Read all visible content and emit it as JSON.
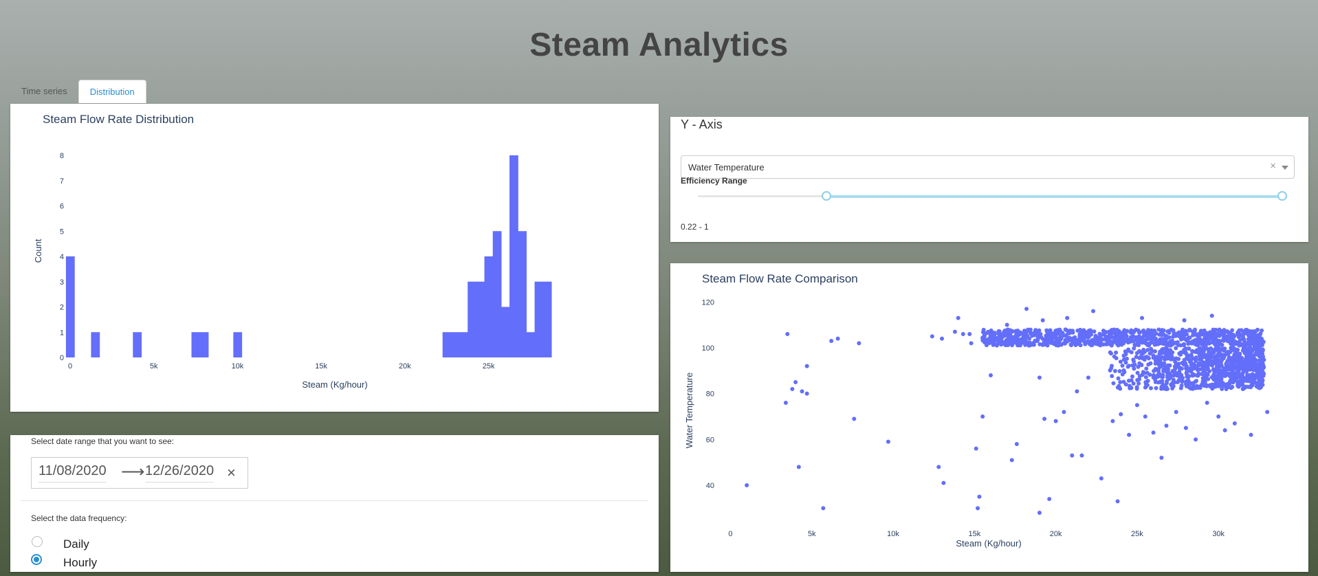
{
  "app": {
    "title": "Steam Analytics"
  },
  "tabs": [
    {
      "label": "Time series",
      "active": false
    },
    {
      "label": "Distribution",
      "active": true
    }
  ],
  "colors": {
    "bar": "#636efa",
    "accent": "#2a8ed0",
    "slider": "#a8dcf0"
  },
  "histogram": {
    "title": "Steam Flow Rate Distribution",
    "xlabel": "Steam (Kg/hour)",
    "ylabel": "Count",
    "x_ticks": [
      "0",
      "5k",
      "10k",
      "15k",
      "20k",
      "25k"
    ],
    "y_ticks": [
      "0",
      "1",
      "2",
      "3",
      "4",
      "5",
      "6",
      "7",
      "8"
    ]
  },
  "controls": {
    "y_axis_label": "Y - Axis",
    "y_axis_value": "Water Temperature",
    "efficiency_label": "Efficiency Range",
    "efficiency_min": 0.22,
    "efficiency_max": 1,
    "efficiency_text": "0.22 - 1"
  },
  "scatter": {
    "title": "Steam Flow Rate Comparison",
    "xlabel": "Steam (Kg/hour)",
    "ylabel": "Water Temperature",
    "x_ticks": [
      "0",
      "5k",
      "10k",
      "15k",
      "20k",
      "25k",
      "30k"
    ],
    "y_ticks": [
      "40",
      "60",
      "80",
      "100",
      "120"
    ]
  },
  "date_range": {
    "label": "Select date range that you want to see:",
    "start": "11/08/2020",
    "end": "12/26/2020"
  },
  "frequency": {
    "label": "Select the data frequency:",
    "options": [
      {
        "label": "Daily",
        "checked": false
      },
      {
        "label": "Hourly",
        "checked": true
      }
    ]
  },
  "chart_data": [
    {
      "type": "bar",
      "title": "Steam Flow Rate Distribution",
      "xlabel": "Steam (Kg/hour)",
      "ylabel": "Count",
      "xlim": [
        0,
        29000
      ],
      "ylim": [
        0,
        8
      ],
      "bin_width": 500,
      "bins": [
        {
          "x0": -250,
          "count": 4
        },
        {
          "x0": 1250,
          "count": 1
        },
        {
          "x0": 3750,
          "count": 1
        },
        {
          "x0": 7250,
          "count": 1
        },
        {
          "x0": 7750,
          "count": 1
        },
        {
          "x0": 9750,
          "count": 1
        },
        {
          "x0": 22250,
          "count": 1
        },
        {
          "x0": 22750,
          "count": 1
        },
        {
          "x0": 23250,
          "count": 1
        },
        {
          "x0": 23750,
          "count": 3
        },
        {
          "x0": 24250,
          "count": 3
        },
        {
          "x0": 24750,
          "count": 4
        },
        {
          "x0": 25250,
          "count": 5
        },
        {
          "x0": 25750,
          "count": 2
        },
        {
          "x0": 26250,
          "count": 8
        },
        {
          "x0": 26750,
          "count": 5
        },
        {
          "x0": 27250,
          "count": 1
        },
        {
          "x0": 27750,
          "count": 3
        },
        {
          "x0": 28250,
          "count": 3
        }
      ]
    },
    {
      "type": "scatter",
      "title": "Steam Flow Rate Comparison",
      "xlabel": "Steam (Kg/hour)",
      "ylabel": "Water Temperature",
      "xlim": [
        -1500,
        33500
      ],
      "ylim": [
        22,
        124
      ],
      "points": [
        [
          1000,
          40
        ],
        [
          3400,
          76
        ],
        [
          3500,
          106
        ],
        [
          3800,
          82
        ],
        [
          4000,
          85
        ],
        [
          4200,
          48
        ],
        [
          4400,
          81
        ],
        [
          4700,
          92
        ],
        [
          4700,
          80
        ],
        [
          5700,
          30
        ],
        [
          6200,
          103
        ],
        [
          6600,
          104
        ],
        [
          7600,
          69
        ],
        [
          7900,
          102
        ],
        [
          9700,
          59
        ],
        [
          12400,
          105
        ],
        [
          12800,
          48
        ],
        [
          13000,
          104
        ],
        [
          13100,
          41
        ],
        [
          13800,
          107
        ],
        [
          14000,
          113
        ],
        [
          14300,
          106
        ],
        [
          14700,
          106
        ],
        [
          14800,
          102
        ],
        [
          15100,
          56
        ],
        [
          15200,
          30
        ],
        [
          15300,
          35
        ],
        [
          15500,
          70
        ],
        [
          16000,
          88
        ],
        [
          17300,
          51
        ],
        [
          17600,
          58
        ],
        [
          18200,
          117
        ],
        [
          19000,
          87
        ],
        [
          19000,
          28
        ],
        [
          19300,
          69
        ],
        [
          19600,
          34
        ],
        [
          20000,
          68
        ],
        [
          20500,
          72
        ],
        [
          21000,
          53
        ],
        [
          21300,
          81
        ],
        [
          21600,
          53
        ],
        [
          22000,
          87
        ],
        [
          22800,
          43
        ],
        [
          23500,
          68
        ],
        [
          23400,
          91
        ],
        [
          23800,
          33
        ],
        [
          24000,
          71
        ],
        [
          24500,
          62
        ],
        [
          25000,
          75
        ],
        [
          25500,
          70
        ],
        [
          26000,
          63
        ],
        [
          26500,
          52
        ],
        [
          26800,
          66
        ],
        [
          27400,
          72
        ],
        [
          28000,
          65
        ],
        [
          28600,
          60
        ],
        [
          29300,
          76
        ],
        [
          30000,
          70
        ],
        [
          30200,
          92
        ],
        [
          30400,
          64
        ],
        [
          31000,
          67
        ],
        [
          31500,
          82
        ],
        [
          32000,
          62
        ],
        [
          32500,
          100
        ],
        [
          33000,
          72
        ],
        [
          29600,
          114
        ],
        [
          27900,
          112
        ],
        [
          25300,
          113
        ],
        [
          22300,
          116
        ],
        [
          20700,
          113
        ],
        [
          19200,
          112
        ],
        [
          17000,
          110
        ]
      ],
      "dense_band": {
        "x": [
          15500,
          32800
        ],
        "y": [
          101,
          108
        ]
      },
      "dense_cluster": {
        "x": [
          22500,
          32800
        ],
        "y": [
          82,
          100
        ]
      }
    }
  ]
}
